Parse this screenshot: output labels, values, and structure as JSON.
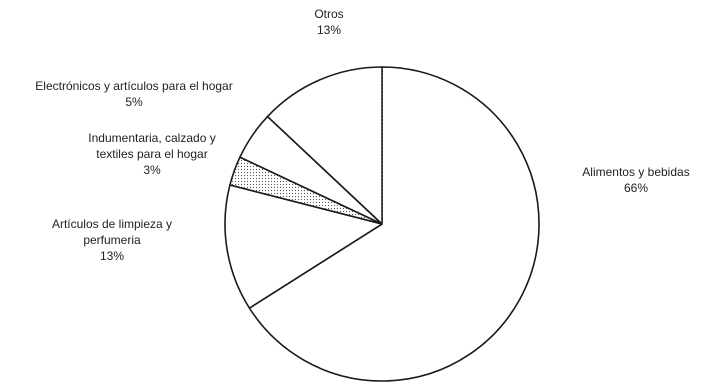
{
  "chart_data": {
    "type": "pie",
    "start": "top",
    "direction": "clockwise",
    "slices": [
      {
        "label": "Alimentos y bebidas",
        "value": 66,
        "pct_text": "66%",
        "fill": "plain",
        "label_lines": [
          "Alimentos y bebidas"
        ]
      },
      {
        "label": "Artículos de limpieza y perfumería",
        "value": 13,
        "pct_text": "13%",
        "fill": "plain",
        "label_lines": [
          "Artículos de limpieza y",
          "perfumeria"
        ]
      },
      {
        "label": "Indumentaria, calzado y textiles para el hogar",
        "value": 3,
        "pct_text": "3%",
        "fill": "dotted",
        "label_lines": [
          "Indumentaria, calzado y",
          "textiles para el hogar"
        ]
      },
      {
        "label": "Electrónicos y artículos para el hogar",
        "value": 5,
        "pct_text": "5%",
        "fill": "plain",
        "label_lines": [
          "Electrónicos y artículos para el hogar"
        ]
      },
      {
        "label": "Otros",
        "value": 13,
        "pct_text": "13%",
        "fill": "plain",
        "label_lines": [
          "Otros"
        ]
      }
    ],
    "colors": {
      "stroke": "#1a1a1a",
      "fill": "#ffffff",
      "dot": "#555555",
      "text": "#222222"
    }
  }
}
